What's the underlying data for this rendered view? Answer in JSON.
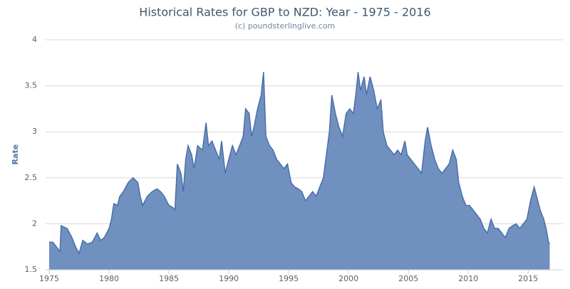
{
  "chart_data": {
    "type": "area",
    "title": "Historical Rates for GBP to NZD: Year - 1975 - 2016",
    "subtitle": "(c) poundsterlinglive.com",
    "y_label": "Rate",
    "color": "#7090bf",
    "line_color": "#4a6fa8",
    "grid": true,
    "xlim": [
      1974.7,
      2017.9
    ],
    "ylim": [
      1.5,
      4
    ],
    "xticks": [
      1975,
      1980,
      1985,
      1990,
      1995,
      2000,
      2005,
      2010,
      2015
    ],
    "yticks": [
      1.5,
      2,
      2.5,
      3,
      3.5,
      4
    ],
    "x": [
      1975.0,
      1975.3,
      1975.6,
      1975.9,
      1976.0,
      1976.5,
      1976.9,
      1977.2,
      1977.5,
      1977.8,
      1978.2,
      1978.6,
      1979.0,
      1979.3,
      1979.6,
      1980.0,
      1980.2,
      1980.4,
      1980.7,
      1980.9,
      1981.2,
      1981.6,
      1982.0,
      1982.4,
      1982.6,
      1982.8,
      1983.2,
      1983.6,
      1984.0,
      1984.3,
      1984.6,
      1985.0,
      1985.3,
      1985.5,
      1985.7,
      1986.0,
      1986.2,
      1986.4,
      1986.6,
      1986.9,
      1987.1,
      1987.4,
      1987.8,
      1988.1,
      1988.3,
      1988.6,
      1988.9,
      1989.2,
      1989.4,
      1989.7,
      1990.0,
      1990.3,
      1990.6,
      1990.9,
      1991.2,
      1991.4,
      1991.7,
      1991.9,
      1992.1,
      1992.4,
      1992.7,
      1992.9,
      1993.1,
      1993.4,
      1993.7,
      1994.0,
      1994.3,
      1994.6,
      1994.9,
      1995.2,
      1995.5,
      1995.8,
      1996.1,
      1996.4,
      1996.7,
      1997.0,
      1997.3,
      1997.6,
      1997.9,
      1998.1,
      1998.4,
      1998.6,
      1998.9,
      1999.2,
      1999.5,
      1999.8,
      2000.1,
      2000.4,
      2000.6,
      2000.8,
      2001.0,
      2001.3,
      2001.5,
      2001.8,
      2002.1,
      2002.4,
      2002.7,
      2002.9,
      2003.2,
      2003.5,
      2003.8,
      2004.1,
      2004.4,
      2004.7,
      2004.9,
      2005.2,
      2005.5,
      2005.8,
      2006.1,
      2006.4,
      2006.6,
      2006.9,
      2007.2,
      2007.5,
      2007.8,
      2008.1,
      2008.4,
      2008.7,
      2009.0,
      2009.2,
      2009.5,
      2009.8,
      2010.1,
      2010.4,
      2010.7,
      2011.0,
      2011.3,
      2011.6,
      2011.9,
      2012.2,
      2012.5,
      2012.8,
      2013.1,
      2013.4,
      2013.7,
      2014.0,
      2014.3,
      2014.6,
      2014.9,
      2015.2,
      2015.5,
      2015.7,
      2016.0,
      2016.3,
      2016.5,
      2016.7,
      2016.8
    ],
    "values": [
      1.8,
      1.8,
      1.75,
      1.7,
      1.98,
      1.95,
      1.85,
      1.75,
      1.68,
      1.82,
      1.78,
      1.8,
      1.9,
      1.82,
      1.85,
      1.95,
      2.05,
      2.22,
      2.2,
      2.3,
      2.35,
      2.45,
      2.5,
      2.45,
      2.3,
      2.2,
      2.3,
      2.35,
      2.38,
      2.35,
      2.3,
      2.2,
      2.18,
      2.15,
      2.65,
      2.55,
      2.35,
      2.7,
      2.85,
      2.75,
      2.6,
      2.85,
      2.8,
      3.1,
      2.85,
      2.9,
      2.8,
      2.7,
      2.9,
      2.55,
      2.7,
      2.85,
      2.75,
      2.85,
      2.95,
      3.25,
      3.2,
      2.95,
      3.05,
      3.25,
      3.4,
      3.65,
      2.95,
      2.85,
      2.8,
      2.7,
      2.65,
      2.6,
      2.65,
      2.45,
      2.4,
      2.38,
      2.35,
      2.25,
      2.3,
      2.35,
      2.3,
      2.4,
      2.5,
      2.7,
      3.0,
      3.4,
      3.2,
      3.05,
      2.95,
      3.2,
      3.25,
      3.2,
      3.4,
      3.65,
      3.45,
      3.6,
      3.4,
      3.6,
      3.45,
      3.25,
      3.35,
      3.0,
      2.85,
      2.8,
      2.75,
      2.8,
      2.75,
      2.9,
      2.75,
      2.7,
      2.65,
      2.6,
      2.55,
      2.9,
      3.05,
      2.85,
      2.7,
      2.6,
      2.55,
      2.6,
      2.65,
      2.8,
      2.7,
      2.45,
      2.3,
      2.2,
      2.2,
      2.15,
      2.1,
      2.05,
      1.95,
      1.9,
      2.05,
      1.95,
      1.95,
      1.9,
      1.85,
      1.95,
      1.98,
      2.0,
      1.95,
      2.0,
      2.05,
      2.25,
      2.4,
      2.3,
      2.15,
      2.05,
      1.95,
      1.8,
      1.78
    ]
  }
}
